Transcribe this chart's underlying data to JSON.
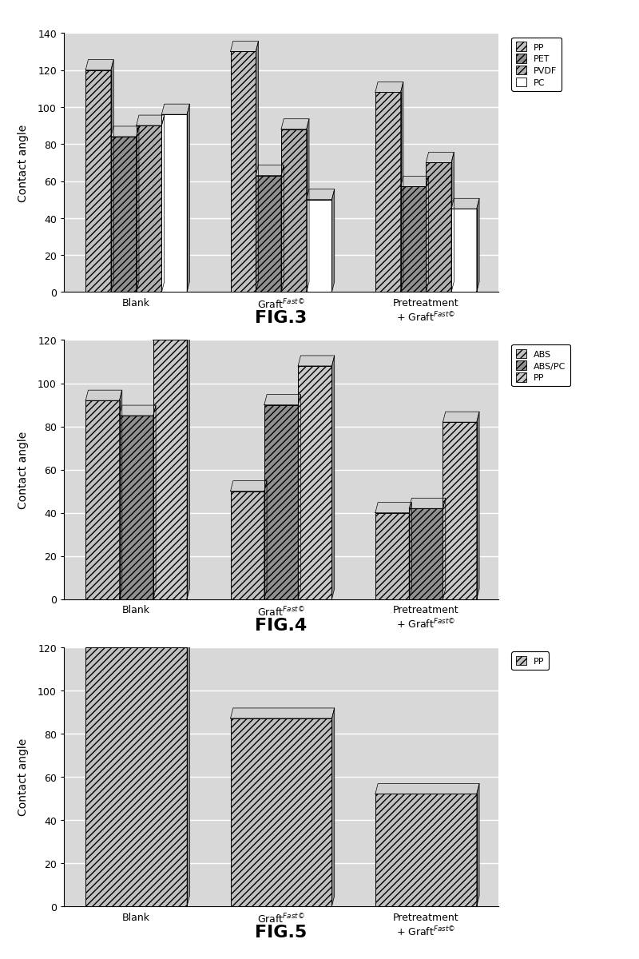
{
  "fig3": {
    "title": "FIG.3",
    "ylabel": "Contact angle",
    "ylim": [
      0,
      140
    ],
    "yticks": [
      0,
      20,
      40,
      60,
      80,
      100,
      120,
      140
    ],
    "categories": [
      "Blank",
      "Graft$^{Fast©}$",
      "Pretreatment\n+ Graft$^{Fast©}$"
    ],
    "series_names": [
      "PP",
      "PET",
      "PVDF",
      "PC"
    ],
    "series_values": [
      [
        120,
        130,
        108
      ],
      [
        84,
        63,
        57
      ],
      [
        90,
        88,
        70
      ],
      [
        96,
        50,
        45
      ]
    ],
    "colors": [
      "#c0c0c0",
      "#909090",
      "#b0b0b0",
      "#ffffff"
    ],
    "hatches": [
      "////",
      "////",
      "////",
      ""
    ],
    "legend_labels": [
      "PP",
      "PET",
      "PVDF",
      "PC"
    ]
  },
  "fig4": {
    "title": "FIG.4",
    "ylabel": "Contact angle",
    "ylim": [
      0,
      120
    ],
    "yticks": [
      0,
      20,
      40,
      60,
      80,
      100,
      120
    ],
    "categories": [
      "Blank",
      "Graft$^{Fast©}$",
      "Pretreatment\n+ Graft$^{Fast©}$"
    ],
    "series_names": [
      "ABS",
      "ABS/PC",
      "PP"
    ],
    "series_values": [
      [
        92,
        50,
        40
      ],
      [
        85,
        90,
        42
      ],
      [
        120,
        108,
        82
      ]
    ],
    "colors": [
      "#c0c0c0",
      "#909090",
      "#c8c8c8"
    ],
    "hatches": [
      "////",
      "////",
      "////"
    ],
    "legend_labels": [
      "ABS",
      "ABS/PC",
      "PP"
    ]
  },
  "fig5": {
    "title": "FIG.5",
    "ylabel": "Contact angle",
    "ylim": [
      0,
      120
    ],
    "yticks": [
      0,
      20,
      40,
      60,
      80,
      100,
      120
    ],
    "categories": [
      "Blank",
      "Graft$^{Fast©}$",
      "Pretreatment\n+ Graft$^{Fast©}$"
    ],
    "series_names": [
      "PP"
    ],
    "series_values": [
      [
        120,
        87,
        52
      ]
    ],
    "colors": [
      "#c0c0c0"
    ],
    "hatches": [
      "////"
    ],
    "legend_labels": [
      "PP"
    ]
  }
}
